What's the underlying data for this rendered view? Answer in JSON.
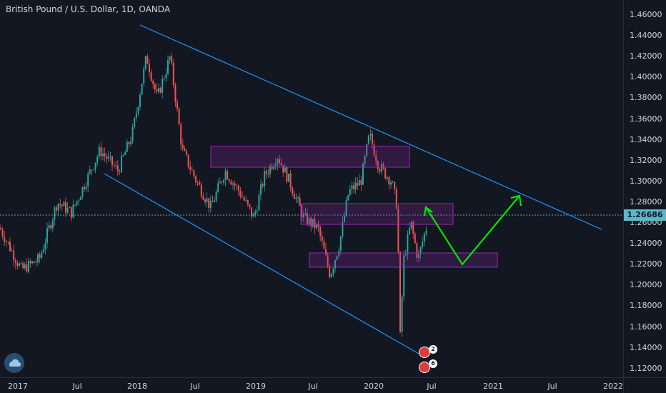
{
  "header": {
    "title": "British Pound / U.S. Dollar, 1D, OANDA"
  },
  "price_axis": {
    "ticks": [
      "1.46000",
      "1.44000",
      "1.42000",
      "1.40000",
      "1.38000",
      "1.36000",
      "1.34000",
      "1.32000",
      "1.30000",
      "1.28000",
      "1.26000",
      "1.24000",
      "1.22000",
      "1.20000",
      "1.18000",
      "1.16000",
      "1.14000",
      "1.12000"
    ],
    "current_price": "1.26686"
  },
  "time_axis": {
    "ticks": [
      "2017",
      "Jul",
      "2018",
      "Jul",
      "2019",
      "Jul",
      "2020",
      "Jul",
      "2021",
      "Jul",
      "2022"
    ]
  },
  "colors": {
    "background": "#131722",
    "up_candle": "#26a69a",
    "down_candle": "#ef5350",
    "trendline": "#2196f3",
    "zone_border": "#9c27b0",
    "projection_arrow": "#00e600",
    "current_price_line": "#5bb8c8"
  },
  "badges": {
    "upper_count": "2",
    "lower_count": "6"
  },
  "icons": {
    "logo": "tradingview-cloud-icon",
    "badge": "ideas-badge-icon"
  }
}
